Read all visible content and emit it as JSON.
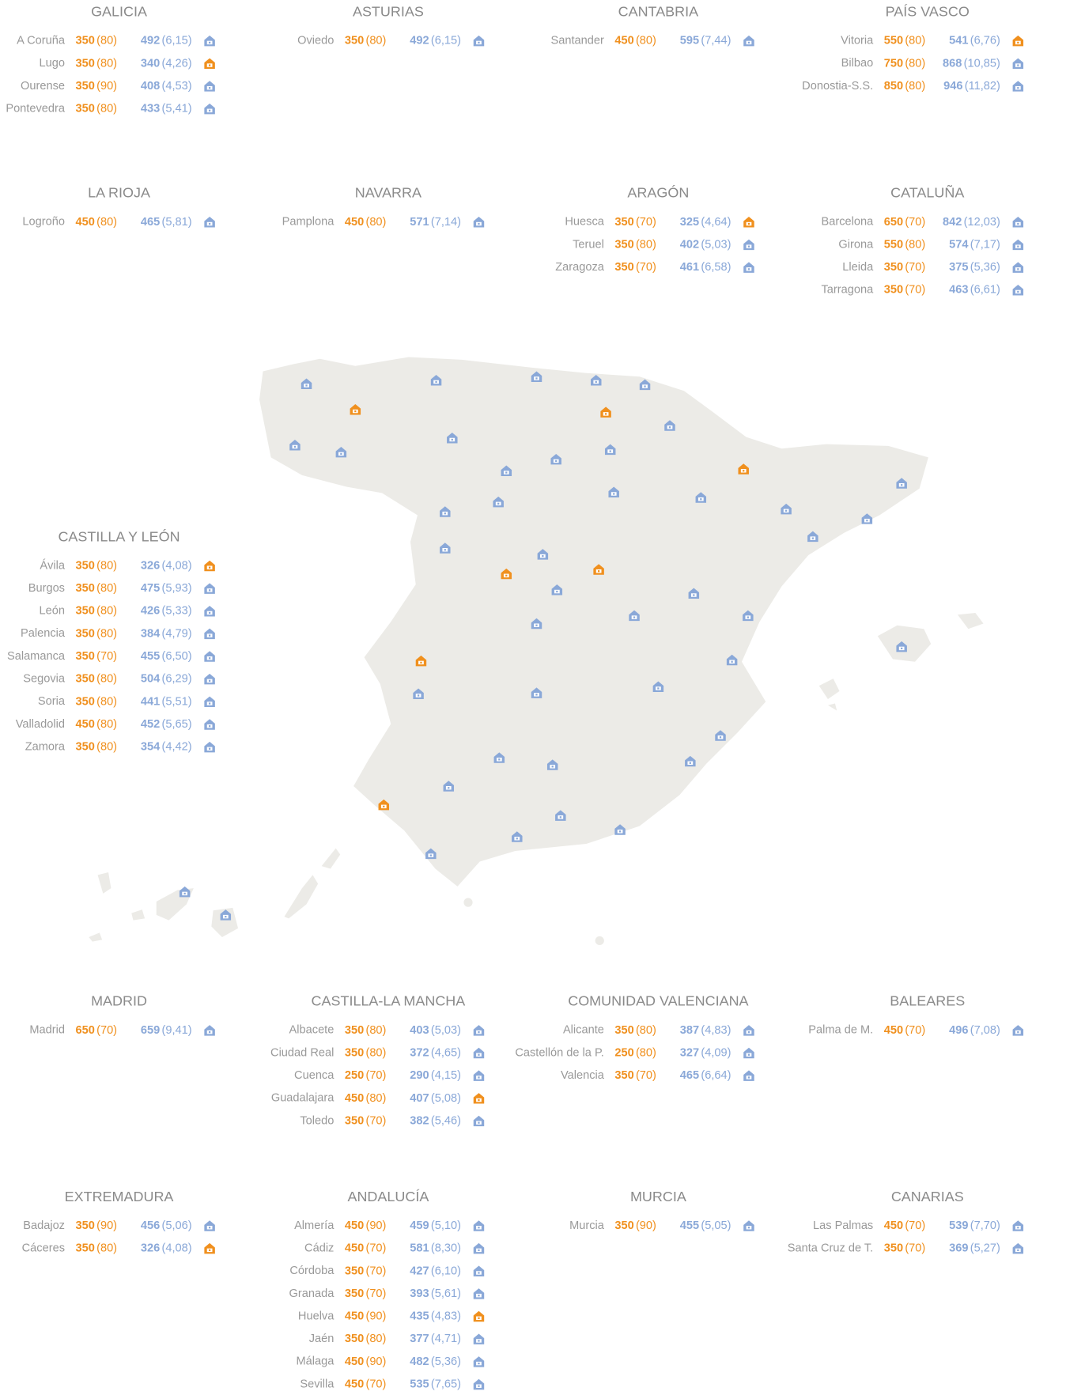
{
  "regions": [
    {
      "name": "GALICIA",
      "cities": [
        {
          "name": "A Coruña",
          "price": 350,
          "sub": "(80)",
          "avg": 492,
          "ratio": "(6,15)",
          "icon": "#8aa8d8"
        },
        {
          "name": "Lugo",
          "price": 350,
          "sub": "(80)",
          "avg": 340,
          "ratio": "(4,26)",
          "icon": "#f0901e"
        },
        {
          "name": "Ourense",
          "price": 350,
          "sub": "(90)",
          "avg": 408,
          "ratio": "(4,53)",
          "icon": "#8aa8d8"
        },
        {
          "name": "Pontevedra",
          "price": 350,
          "sub": "(80)",
          "avg": 433,
          "ratio": "(5,41)",
          "icon": "#8aa8d8"
        }
      ]
    },
    {
      "name": "ASTURIAS",
      "cities": [
        {
          "name": "Oviedo",
          "price": 350,
          "sub": "(80)",
          "avg": 492,
          "ratio": "(6,15)",
          "icon": "#8aa8d8"
        }
      ]
    },
    {
      "name": "CANTABRIA",
      "cities": [
        {
          "name": "Santander",
          "price": 450,
          "sub": "(80)",
          "avg": 595,
          "ratio": "(7,44)",
          "icon": "#8aa8d8"
        }
      ]
    },
    {
      "name": "PAÍS VASCO",
      "cities": [
        {
          "name": "Vitoria",
          "price": 550,
          "sub": "(80)",
          "avg": 541,
          "ratio": "(6,76)",
          "icon": "#f0901e"
        },
        {
          "name": "Bilbao",
          "price": 750,
          "sub": "(80)",
          "avg": 868,
          "ratio": "(10,85)",
          "icon": "#8aa8d8"
        },
        {
          "name": "Donostia-S.S.",
          "price": 850,
          "sub": "(80)",
          "avg": 946,
          "ratio": "(11,82)",
          "icon": "#8aa8d8"
        }
      ]
    },
    {
      "name": "LA RIOJA",
      "cities": [
        {
          "name": "Logroño",
          "price": 450,
          "sub": "(80)",
          "avg": 465,
          "ratio": "(5,81)",
          "icon": "#8aa8d8"
        }
      ]
    },
    {
      "name": "NAVARRA",
      "cities": [
        {
          "name": "Pamplona",
          "price": 450,
          "sub": "(80)",
          "avg": 571,
          "ratio": "(7,14)",
          "icon": "#8aa8d8"
        }
      ]
    },
    {
      "name": "ARAGÓN",
      "cities": [
        {
          "name": "Huesca",
          "price": 350,
          "sub": "(70)",
          "avg": 325,
          "ratio": "(4,64)",
          "icon": "#f0901e"
        },
        {
          "name": "Teruel",
          "price": 350,
          "sub": "(80)",
          "avg": 402,
          "ratio": "(5,03)",
          "icon": "#8aa8d8"
        },
        {
          "name": "Zaragoza",
          "price": 350,
          "sub": "(70)",
          "avg": 461,
          "ratio": "(6,58)",
          "icon": "#8aa8d8"
        }
      ]
    },
    {
      "name": "CATALUÑA",
      "cities": [
        {
          "name": "Barcelona",
          "price": 650,
          "sub": "(70)",
          "avg": 842,
          "ratio": "(12,03)",
          "icon": "#8aa8d8"
        },
        {
          "name": "Girona",
          "price": 550,
          "sub": "(80)",
          "avg": 574,
          "ratio": "(7,17)",
          "icon": "#8aa8d8"
        },
        {
          "name": "Lleida",
          "price": 350,
          "sub": "(70)",
          "avg": 375,
          "ratio": "(5,36)",
          "icon": "#8aa8d8"
        },
        {
          "name": "Tarragona",
          "price": 350,
          "sub": "(70)",
          "avg": 463,
          "ratio": "(6,61)",
          "icon": "#8aa8d8"
        }
      ]
    },
    {
      "name": "CASTILLA Y LEÓN",
      "cities": [
        {
          "name": "Ávila",
          "price": 350,
          "sub": "(80)",
          "avg": 326,
          "ratio": "(4,08)",
          "icon": "#f0901e"
        },
        {
          "name": "Burgos",
          "price": 350,
          "sub": "(80)",
          "avg": 475,
          "ratio": "(5,93)",
          "icon": "#8aa8d8"
        },
        {
          "name": "León",
          "price": 350,
          "sub": "(80)",
          "avg": 426,
          "ratio": "(5,33)",
          "icon": "#8aa8d8"
        },
        {
          "name": "Palencia",
          "price": 350,
          "sub": "(80)",
          "avg": 384,
          "ratio": "(4,79)",
          "icon": "#8aa8d8"
        },
        {
          "name": "Salamanca",
          "price": 350,
          "sub": "(70)",
          "avg": 455,
          "ratio": "(6,50)",
          "icon": "#8aa8d8"
        },
        {
          "name": "Segovia",
          "price": 350,
          "sub": "(80)",
          "avg": 504,
          "ratio": "(6,29)",
          "icon": "#8aa8d8"
        },
        {
          "name": "Soria",
          "price": 350,
          "sub": "(80)",
          "avg": 441,
          "ratio": "(5,51)",
          "icon": "#8aa8d8"
        },
        {
          "name": "Valladolid",
          "price": 450,
          "sub": "(80)",
          "avg": 452,
          "ratio": "(5,65)",
          "icon": "#8aa8d8"
        },
        {
          "name": "Zamora",
          "price": 350,
          "sub": "(80)",
          "avg": 354,
          "ratio": "(4,42)",
          "icon": "#8aa8d8"
        }
      ]
    },
    {
      "name": "MADRID",
      "cities": [
        {
          "name": "Madrid",
          "price": 650,
          "sub": "(70)",
          "avg": 659,
          "ratio": "(9,41)",
          "icon": "#8aa8d8"
        }
      ]
    },
    {
      "name": "CASTILLA-LA MANCHA",
      "cities": [
        {
          "name": "Albacete",
          "price": 350,
          "sub": "(80)",
          "avg": 403,
          "ratio": "(5,03)",
          "icon": "#8aa8d8"
        },
        {
          "name": "Ciudad Real",
          "price": 350,
          "sub": "(80)",
          "avg": 372,
          "ratio": "(4,65)",
          "icon": "#8aa8d8"
        },
        {
          "name": "Cuenca",
          "price": 250,
          "sub": "(70)",
          "avg": 290,
          "ratio": "(4,15)",
          "icon": "#8aa8d8"
        },
        {
          "name": "Guadalajara",
          "price": 450,
          "sub": "(80)",
          "avg": 407,
          "ratio": "(5,08)",
          "icon": "#f0901e"
        },
        {
          "name": "Toledo",
          "price": 350,
          "sub": "(70)",
          "avg": 382,
          "ratio": "(5,46)",
          "icon": "#8aa8d8"
        }
      ]
    },
    {
      "name": "COMUNIDAD VALENCIANA",
      "cities": [
        {
          "name": "Alicante",
          "price": 350,
          "sub": "(80)",
          "avg": 387,
          "ratio": "(4,83)",
          "icon": "#8aa8d8"
        },
        {
          "name": "Castellón de la P.",
          "price": 250,
          "sub": "(80)",
          "avg": 327,
          "ratio": "(4,09)",
          "icon": "#8aa8d8"
        },
        {
          "name": "Valencia",
          "price": 350,
          "sub": "(70)",
          "avg": 465,
          "ratio": "(6,64)",
          "icon": "#8aa8d8"
        }
      ]
    },
    {
      "name": "BALEARES",
      "cities": [
        {
          "name": "Palma de M.",
          "price": 450,
          "sub": "(70)",
          "avg": 496,
          "ratio": "(7,08)",
          "icon": "#8aa8d8"
        }
      ]
    },
    {
      "name": "EXTREMADURA",
      "cities": [
        {
          "name": "Badajoz",
          "price": 350,
          "sub": "(90)",
          "avg": 456,
          "ratio": "(5,06)",
          "icon": "#8aa8d8"
        },
        {
          "name": "Cáceres",
          "price": 350,
          "sub": "(80)",
          "avg": 326,
          "ratio": "(4,08)",
          "icon": "#f0901e"
        }
      ]
    },
    {
      "name": "ANDALUCÍA",
      "cities": [
        {
          "name": "Almería",
          "price": 450,
          "sub": "(90)",
          "avg": 459,
          "ratio": "(5,10)",
          "icon": "#8aa8d8"
        },
        {
          "name": "Cádiz",
          "price": 450,
          "sub": "(70)",
          "avg": 581,
          "ratio": "(8,30)",
          "icon": "#8aa8d8"
        },
        {
          "name": "Córdoba",
          "price": 350,
          "sub": "(70)",
          "avg": 427,
          "ratio": "(6,10)",
          "icon": "#8aa8d8"
        },
        {
          "name": "Granada",
          "price": 350,
          "sub": "(70)",
          "avg": 393,
          "ratio": "(5,61)",
          "icon": "#8aa8d8"
        },
        {
          "name": "Huelva",
          "price": 450,
          "sub": "(90)",
          "avg": 435,
          "ratio": "(4,83)",
          "icon": "#f0901e"
        },
        {
          "name": "Jaén",
          "price": 350,
          "sub": "(80)",
          "avg": 377,
          "ratio": "(4,71)",
          "icon": "#8aa8d8"
        },
        {
          "name": "Málaga",
          "price": 450,
          "sub": "(90)",
          "avg": 482,
          "ratio": "(5,36)",
          "icon": "#8aa8d8"
        },
        {
          "name": "Sevilla",
          "price": 450,
          "sub": "(70)",
          "avg": 535,
          "ratio": "(7,65)",
          "icon": "#8aa8d8"
        }
      ]
    },
    {
      "name": "MURCIA",
      "cities": [
        {
          "name": "Murcia",
          "price": 350,
          "sub": "(90)",
          "avg": 455,
          "ratio": "(5,05)",
          "icon": "#8aa8d8"
        }
      ]
    },
    {
      "name": "CANARIAS",
      "cities": [
        {
          "name": "Las Palmas",
          "price": 450,
          "sub": "(70)",
          "avg": 539,
          "ratio": "(7,70)",
          "icon": "#8aa8d8"
        },
        {
          "name": "Santa Cruz de T.",
          "price": 350,
          "sub": "(70)",
          "avg": 369,
          "ratio": "(5,27)",
          "icon": "#8aa8d8"
        }
      ]
    }
  ]
}
